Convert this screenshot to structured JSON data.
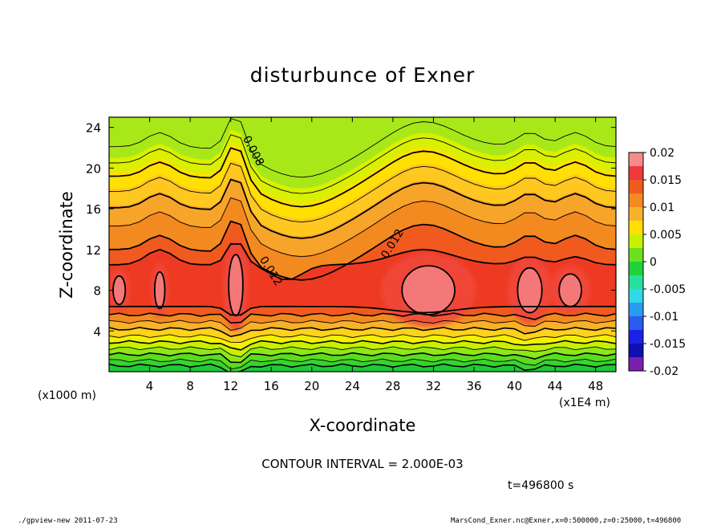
{
  "chart_data": {
    "type": "contour",
    "title": "disturbunce of Exner",
    "xlabel": "X-coordinate",
    "ylabel": "Z-coordinate",
    "x_unit_left": "(x1000 m)",
    "x_unit_right": "(x1E4 m)",
    "xlim": [
      0,
      50
    ],
    "ylim": [
      0,
      25
    ],
    "x_ticks": [
      "4",
      "8",
      "12",
      "16",
      "20",
      "24",
      "28",
      "32",
      "36",
      "40",
      "44",
      "48"
    ],
    "y_ticks": [
      "4",
      "8",
      "12",
      "16",
      "20",
      "24"
    ],
    "contour_interval_text": "CONTOUR INTERVAL = 2.000E-03",
    "contour_labels": [
      "0.008",
      "0.012",
      "0.012"
    ],
    "colorbar": {
      "range": [
        -0.02,
        0.02
      ],
      "tick_labels": [
        "0.02",
        "0.015",
        "0.01",
        "0.005",
        "0",
        "-0.005",
        "-0.01",
        "-0.015",
        "-0.02"
      ],
      "colors": [
        "#f48c8c",
        "#f03a3a",
        "#f15a1f",
        "#f38a20",
        "#f7b22a",
        "#ffe000",
        "#c8f000",
        "#6ce020",
        "#21d23a",
        "#27e0a0",
        "#33d8e8",
        "#2a9cf0",
        "#2a5cf0",
        "#1b22e8",
        "#1010b0",
        "#7b1fb0"
      ]
    },
    "time_label": "t=496800 s",
    "features": [
      {
        "name": "surface-layer",
        "x_range": [
          0,
          50
        ],
        "z_range": [
          0,
          5
        ],
        "value_range": [
          -0.002,
          0.009
        ]
      },
      {
        "name": "maximum-band",
        "z_center": 8,
        "value": 0.014
      },
      {
        "name": "core-x1",
        "x": 1,
        "z": 8,
        "value": 0.016
      },
      {
        "name": "core-x5",
        "x": 5,
        "z": 8,
        "value": 0.016
      },
      {
        "name": "core-x12.5",
        "x": 12.5,
        "z": 8.5,
        "value": 0.016
      },
      {
        "name": "core-x31.5",
        "x": 31.5,
        "z": 8,
        "value": 0.017
      },
      {
        "name": "core-x41.5",
        "x": 41.5,
        "z": 8,
        "value": 0.016
      },
      {
        "name": "core-x45.5",
        "x": 45.5,
        "z": 8,
        "value": 0.016
      }
    ]
  },
  "footer": {
    "left": "./gpview-new   2011-07-23",
    "right": "MarsCond_Exner.nc@Exner,x=0:500000,z=0:25000,t=496800"
  }
}
